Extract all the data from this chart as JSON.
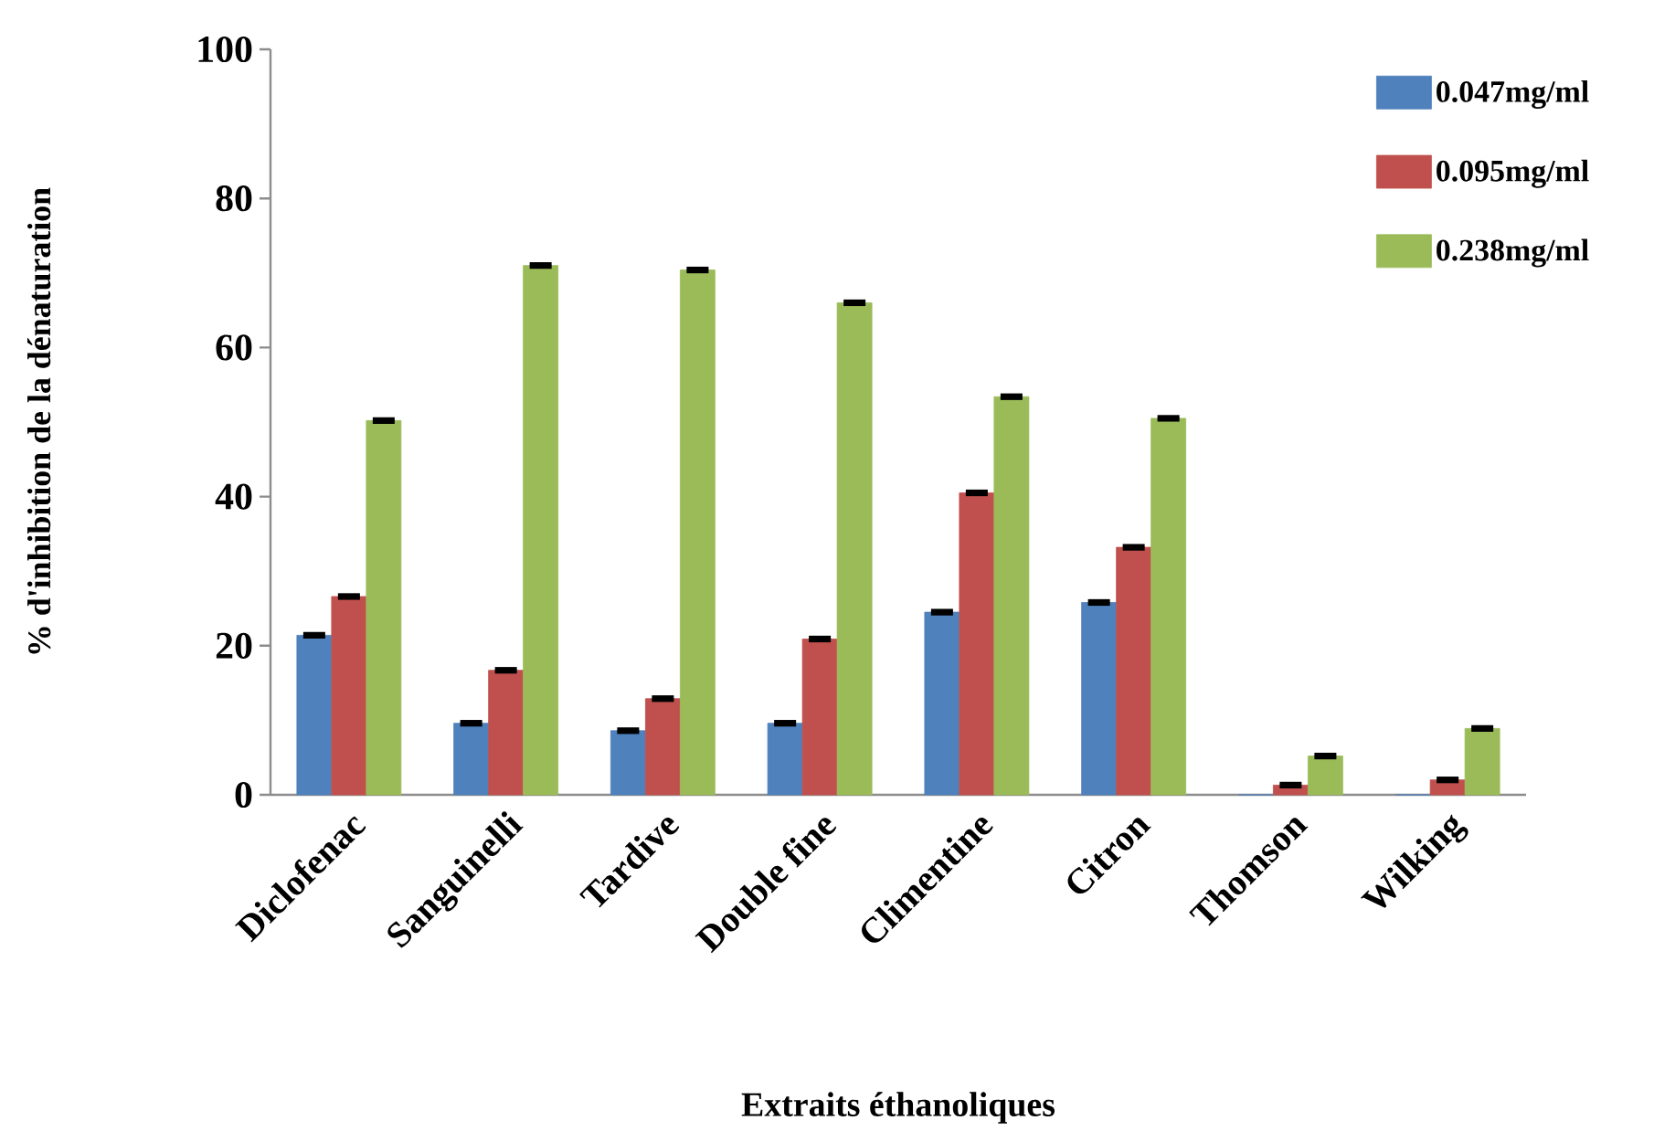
{
  "chart_data": {
    "type": "bar",
    "xlabel": "Extraits éthanoliques",
    "ylabel": "% d'inhibition de la dénaturation",
    "categories": [
      "Diclofenac",
      "Sanguinelli",
      "Tardive",
      "Double fine",
      "Climentine",
      "Citron",
      "Thomson",
      "Wilking"
    ],
    "series": [
      {
        "name": "0.047mg/ml",
        "color": "#4f81bd",
        "values": [
          21.4,
          9.6,
          8.6,
          9.6,
          24.5,
          25.8,
          0,
          0
        ],
        "errors": [
          0.2,
          0.2,
          0.2,
          0.2,
          0.2,
          0.2,
          null,
          null
        ]
      },
      {
        "name": "0.095mg/ml",
        "color": "#c0504d",
        "values": [
          26.6,
          16.7,
          12.9,
          20.9,
          40.5,
          33.2,
          1.3,
          2.0
        ],
        "errors": [
          0.2,
          0.2,
          0.2,
          0.2,
          0.2,
          0.2,
          0.2,
          0.2
        ]
      },
      {
        "name": "0.238mg/ml",
        "color": "#9bbb59",
        "values": [
          50.2,
          71.0,
          70.4,
          66.0,
          53.4,
          50.5,
          5.2,
          8.9
        ],
        "errors": [
          0.2,
          0.2,
          0.2,
          0.2,
          0.2,
          0.2,
          0.2,
          0.2
        ]
      }
    ],
    "ylim": [
      0,
      100
    ],
    "yticks": [
      0,
      20,
      40,
      60,
      80,
      100
    ],
    "grid": false,
    "legend": "top right"
  }
}
